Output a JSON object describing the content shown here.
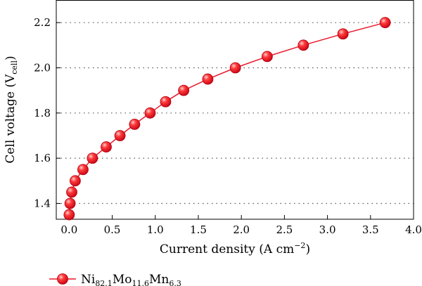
{
  "chart_data": {
    "type": "line",
    "xlabel": {
      "main": "Current density (A cm",
      "sup": "−2",
      "tail": ")"
    },
    "ylabel": {
      "main": "Cell voltage (V",
      "sub": "cell",
      "tail": ")"
    },
    "xlim": [
      -0.15,
      4.0
    ],
    "ylim": [
      1.33,
      2.3
    ],
    "xticks": [
      "0.0",
      "0.5",
      "1.0",
      "1.5",
      "2.0",
      "2.5",
      "3.0",
      "3.5",
      "4.0"
    ],
    "xtick_values": [
      0.0,
      0.5,
      1.0,
      1.5,
      2.0,
      2.5,
      3.0,
      3.5,
      4.0
    ],
    "yticks": [
      "1.4",
      "1.6",
      "1.8",
      "2.0",
      "2.2"
    ],
    "ytick_values": [
      1.4,
      1.6,
      1.8,
      2.0,
      2.2
    ],
    "grid": "horizontal-dotted",
    "legend_position": "bottom-left",
    "series": [
      {
        "name_parts": [
          {
            "t": "Ni",
            "s": ""
          },
          {
            "t": "82.1",
            "s": "sub"
          },
          {
            "t": "Mo",
            "s": ""
          },
          {
            "t": "11.6",
            "s": "sub"
          },
          {
            "t": "Mn",
            "s": ""
          },
          {
            "t": "6.3",
            "s": "sub"
          }
        ],
        "color": "#e8192c",
        "x": [
          0.0,
          0.01,
          0.03,
          0.07,
          0.16,
          0.27,
          0.43,
          0.59,
          0.76,
          0.94,
          1.12,
          1.33,
          1.61,
          1.93,
          2.3,
          2.72,
          3.18,
          3.67
        ],
        "y": [
          1.35,
          1.4,
          1.45,
          1.5,
          1.55,
          1.6,
          1.65,
          1.7,
          1.75,
          1.8,
          1.85,
          1.9,
          1.95,
          2.0,
          2.05,
          2.1,
          2.15,
          2.2
        ]
      }
    ]
  }
}
